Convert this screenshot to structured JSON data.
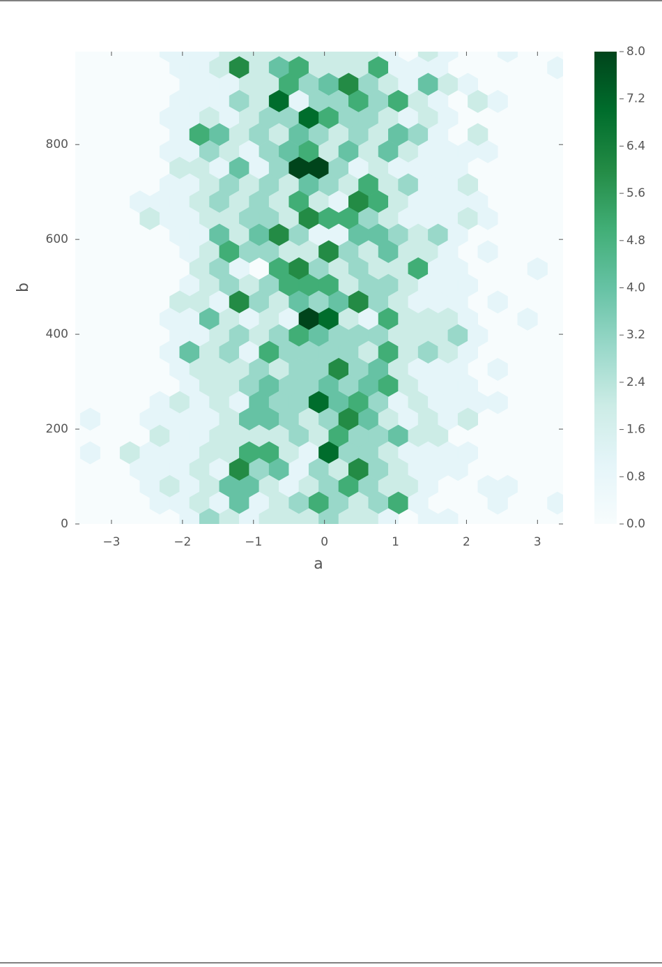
{
  "chart_data": {
    "type": "hexbin",
    "x_label": "a",
    "y_label": "b",
    "xlim": [
      -3.51,
      3.36
    ],
    "ylim": [
      0,
      996
    ],
    "xticks": [
      {
        "value": -3,
        "label": "−3"
      },
      {
        "value": -2,
        "label": "−2"
      },
      {
        "value": -1,
        "label": "−1"
      },
      0,
      1,
      2,
      3
    ],
    "yticks": [
      0,
      200,
      400,
      600,
      800
    ],
    "colormap": [
      "#f7fcfd",
      "#e5f5f9",
      "#ccece6",
      "#99d8c9",
      "#66c2a4",
      "#41ae76",
      "#238b45",
      "#006d2c",
      "#00441b"
    ],
    "clim": [
      0,
      8
    ],
    "cticks": [
      {
        "value": 0,
        "label": "0.0"
      },
      0.8,
      1.6,
      2.4,
      3.2,
      {
        "value": 4,
        "label": "4.0"
      },
      4.8,
      5.6,
      6.4,
      7.2,
      {
        "value": 8,
        "label": "8.0"
      }
    ],
    "rows": [
      {
        "y": 997,
        "x": [
          -2.18,
          -1.9,
          -1.62,
          -1.34,
          -1.06,
          -0.78,
          -0.5,
          -0.22,
          0.06,
          0.34,
          0.62,
          0.9,
          1.46,
          1.74,
          2.58
        ],
        "values": [
          1,
          1,
          1,
          2,
          2,
          2,
          2,
          2,
          2,
          2,
          2,
          1,
          2,
          1,
          1
        ]
      },
      {
        "y": 962,
        "x": [
          -2.04,
          -1.76,
          -1.48,
          -1.2,
          -0.92,
          -0.64,
          -0.36,
          -0.08,
          0.2,
          0.48,
          0.76,
          1.04,
          1.32,
          1.6,
          3.28
        ],
        "values": [
          1,
          1,
          2,
          6,
          2,
          4,
          5,
          2,
          2,
          2,
          5,
          1,
          1,
          1,
          1
        ]
      },
      {
        "y": 927,
        "x": [
          -1.9,
          -1.62,
          -1.34,
          -1.06,
          -0.78,
          -0.5,
          -0.22,
          0.06,
          0.34,
          0.62,
          0.9,
          1.18,
          1.46,
          1.74,
          2.02
        ],
        "values": [
          1,
          1,
          1,
          2,
          2,
          5,
          3,
          4,
          6,
          3,
          2,
          1,
          4,
          2,
          1
        ]
      },
      {
        "y": 891,
        "x": [
          -2.04,
          -1.76,
          -1.48,
          -1.2,
          -0.92,
          -0.64,
          -0.36,
          -0.08,
          0.2,
          0.48,
          0.76,
          1.04,
          1.32,
          1.6,
          2.16,
          2.44
        ],
        "values": [
          1,
          1,
          1,
          3,
          2,
          7,
          1,
          3,
          3,
          5,
          3,
          5,
          2,
          1,
          2,
          1
        ]
      },
      {
        "y": 856,
        "x": [
          -2.18,
          -1.9,
          -1.62,
          -1.34,
          -1.06,
          -0.78,
          -0.5,
          -0.22,
          0.06,
          0.34,
          0.62,
          0.9,
          1.18,
          1.46,
          1.74
        ],
        "values": [
          1,
          1,
          2,
          1,
          2,
          3,
          3,
          7,
          5,
          3,
          3,
          2,
          1,
          2,
          1
        ]
      },
      {
        "y": 821,
        "x": [
          -2.04,
          -1.76,
          -1.48,
          -1.2,
          -0.92,
          -0.64,
          -0.36,
          -0.08,
          0.2,
          0.48,
          0.76,
          1.04,
          1.32,
          1.6,
          2.16
        ],
        "values": [
          1,
          5,
          4,
          2,
          3,
          2,
          4,
          3,
          2,
          3,
          2,
          4,
          3,
          1,
          2
        ]
      },
      {
        "y": 785,
        "x": [
          -2.18,
          -1.9,
          -1.62,
          -1.34,
          -1.06,
          -0.78,
          -0.5,
          -0.22,
          0.06,
          0.34,
          0.62,
          0.9,
          1.18,
          1.46,
          1.74,
          2.02,
          2.3
        ],
        "values": [
          1,
          1,
          3,
          2,
          1,
          3,
          4,
          5,
          2,
          4,
          2,
          4,
          2,
          1,
          1,
          1,
          1
        ]
      },
      {
        "y": 750,
        "x": [
          -2.04,
          -1.76,
          -1.48,
          -1.2,
          -0.92,
          -0.64,
          -0.36,
          -0.08,
          0.2,
          0.48,
          0.76,
          1.04,
          1.32,
          1.6,
          1.88
        ],
        "values": [
          2,
          2,
          1,
          4,
          1,
          3,
          8,
          8,
          3,
          1,
          2,
          1,
          1,
          1,
          1
        ]
      },
      {
        "y": 715,
        "x": [
          -2.18,
          -1.9,
          -1.62,
          -1.34,
          -1.06,
          -0.78,
          -0.5,
          -0.22,
          0.06,
          0.34,
          0.62,
          0.9,
          1.18,
          1.46,
          1.74,
          2.02
        ],
        "values": [
          1,
          1,
          2,
          3,
          2,
          3,
          2,
          4,
          3,
          2,
          5,
          2,
          3,
          1,
          1,
          2
        ]
      },
      {
        "y": 679,
        "x": [
          -2.6,
          -2.32,
          -2.04,
          -1.76,
          -1.48,
          -1.2,
          -0.92,
          -0.64,
          -0.36,
          -0.08,
          0.2,
          0.48,
          0.76,
          1.04,
          1.32,
          1.6,
          1.88,
          2.16
        ],
        "values": [
          1,
          1,
          1,
          2,
          3,
          2,
          3,
          2,
          5,
          2,
          1,
          6,
          5,
          2,
          1,
          1,
          1,
          1
        ]
      },
      {
        "y": 644,
        "x": [
          -2.46,
          -2.18,
          -1.9,
          -1.62,
          -1.34,
          -1.06,
          -0.78,
          -0.5,
          -0.22,
          0.06,
          0.34,
          0.62,
          0.9,
          1.18,
          1.46,
          1.74,
          2.02,
          2.3
        ],
        "values": [
          2,
          1,
          1,
          2,
          2,
          3,
          3,
          2,
          6,
          5,
          5,
          3,
          2,
          1,
          1,
          1,
          2,
          1
        ]
      },
      {
        "y": 609,
        "x": [
          -2.04,
          -1.76,
          -1.48,
          -1.2,
          -0.92,
          -0.64,
          -0.36,
          -0.08,
          0.2,
          0.48,
          0.76,
          1.04,
          1.32,
          1.6,
          1.88
        ],
        "values": [
          1,
          1,
          4,
          2,
          4,
          6,
          3,
          1,
          1,
          4,
          4,
          3,
          2,
          3,
          1
        ]
      },
      {
        "y": 574,
        "x": [
          -1.9,
          -1.62,
          -1.34,
          -1.06,
          -0.78,
          -0.5,
          -0.22,
          0.06,
          0.34,
          0.62,
          0.9,
          1.18,
          1.46,
          1.74,
          2.3
        ],
        "values": [
          1,
          2,
          5,
          3,
          3,
          2,
          2,
          6,
          3,
          2,
          4,
          2,
          2,
          1,
          1
        ]
      },
      {
        "y": 538,
        "x": [
          -1.76,
          -1.48,
          -1.2,
          -0.64,
          -0.36,
          -0.08,
          0.2,
          0.48,
          0.76,
          1.04,
          1.32,
          1.6,
          1.88,
          3.0
        ],
        "values": [
          2,
          3,
          1,
          5,
          6,
          3,
          2,
          3,
          2,
          2,
          5,
          1,
          1,
          1
        ]
      },
      {
        "y": 503,
        "x": [
          -1.9,
          -1.62,
          -1.34,
          -1.06,
          -0.78,
          -0.5,
          -0.22,
          0.06,
          0.34,
          0.62,
          0.9,
          1.18,
          1.46,
          1.74,
          2.02
        ],
        "values": [
          1,
          2,
          3,
          2,
          3,
          5,
          5,
          5,
          2,
          3,
          3,
          2,
          1,
          1,
          1
        ]
      },
      {
        "y": 468,
        "x": [
          -2.04,
          -1.76,
          -1.48,
          -1.2,
          -0.92,
          -0.64,
          -0.36,
          -0.08,
          0.2,
          0.48,
          0.76,
          1.04,
          1.32,
          1.6,
          1.88,
          2.44
        ],
        "values": [
          2,
          2,
          1,
          6,
          3,
          2,
          4,
          3,
          4,
          6,
          3,
          2,
          1,
          1,
          1,
          1
        ]
      },
      {
        "y": 432,
        "x": [
          -2.18,
          -1.9,
          -1.62,
          -1.34,
          -1.06,
          -0.78,
          -0.5,
          -0.22,
          0.06,
          0.34,
          0.62,
          0.9,
          1.18,
          1.46,
          1.74,
          2.02,
          2.86
        ],
        "values": [
          1,
          1,
          4,
          2,
          1,
          2,
          1,
          8,
          7,
          2,
          1,
          5,
          2,
          2,
          2,
          1,
          1
        ]
      },
      {
        "y": 397,
        "x": [
          -2.04,
          -1.76,
          -1.48,
          -1.2,
          -0.92,
          -0.64,
          -0.36,
          -0.08,
          0.2,
          0.48,
          0.76,
          1.04,
          1.32,
          1.6,
          1.88,
          2.16
        ],
        "values": [
          1,
          1,
          2,
          3,
          2,
          3,
          5,
          4,
          3,
          3,
          3,
          2,
          2,
          2,
          3,
          1
        ]
      },
      {
        "y": 362,
        "x": [
          -2.18,
          -1.9,
          -1.62,
          -1.34,
          -1.06,
          -0.78,
          -0.5,
          -0.22,
          0.06,
          0.34,
          0.62,
          0.9,
          1.18,
          1.46,
          1.74,
          2.02
        ],
        "values": [
          1,
          4,
          2,
          3,
          1,
          5,
          3,
          3,
          3,
          3,
          2,
          5,
          2,
          3,
          2,
          1
        ]
      },
      {
        "y": 326,
        "x": [
          -2.04,
          -1.76,
          -1.48,
          -1.2,
          -0.92,
          -0.64,
          -0.36,
          -0.08,
          0.2,
          0.48,
          0.76,
          1.04,
          1.32,
          1.6,
          1.88,
          2.44
        ],
        "values": [
          1,
          2,
          2,
          2,
          3,
          2,
          3,
          3,
          6,
          3,
          4,
          2,
          1,
          1,
          1,
          1
        ]
      },
      {
        "y": 291,
        "x": [
          -1.9,
          -1.62,
          -1.34,
          -1.06,
          -0.78,
          -0.5,
          -0.22,
          0.06,
          0.34,
          0.62,
          0.9,
          1.18,
          1.46,
          1.74,
          2.02
        ],
        "values": [
          1,
          2,
          2,
          3,
          4,
          3,
          3,
          4,
          3,
          4,
          5,
          2,
          1,
          1,
          1
        ]
      },
      {
        "y": 256,
        "x": [
          -2.32,
          -2.04,
          -1.76,
          -1.48,
          -1.2,
          -0.92,
          -0.64,
          -0.36,
          -0.08,
          0.2,
          0.48,
          0.76,
          1.04,
          1.32,
          1.6,
          1.88,
          2.16,
          2.44
        ],
        "values": [
          1,
          2,
          1,
          2,
          1,
          4,
          3,
          3,
          7,
          4,
          5,
          3,
          1,
          2,
          1,
          1,
          1,
          1
        ]
      },
      {
        "y": 221,
        "x": [
          -3.3,
          -2.46,
          -2.18,
          -1.9,
          -1.62,
          -1.34,
          -1.06,
          -0.78,
          -0.5,
          -0.22,
          0.06,
          0.34,
          0.62,
          0.9,
          1.18,
          1.46,
          1.74,
          2.02
        ],
        "values": [
          1,
          1,
          1,
          1,
          1,
          2,
          4,
          4,
          3,
          2,
          3,
          6,
          4,
          2,
          1,
          2,
          1,
          2
        ]
      },
      {
        "y": 185,
        "x": [
          -2.32,
          -2.04,
          -1.76,
          -1.48,
          -1.2,
          -0.92,
          -0.64,
          -0.36,
          -0.08,
          0.2,
          0.48,
          0.76,
          1.04,
          1.32,
          1.6
        ],
        "values": [
          2,
          1,
          1,
          2,
          2,
          2,
          2,
          3,
          2,
          5,
          3,
          3,
          4,
          2,
          2
        ]
      },
      {
        "y": 150,
        "x": [
          -3.3,
          -2.74,
          -2.46,
          -2.18,
          -1.9,
          -1.62,
          -1.34,
          -1.06,
          -0.78,
          -0.5,
          -0.22,
          0.06,
          0.34,
          0.62,
          0.9,
          1.18,
          1.46,
          1.74,
          2.02
        ],
        "values": [
          1,
          2,
          1,
          1,
          1,
          2,
          2,
          5,
          5,
          2,
          1,
          7,
          3,
          3,
          2,
          1,
          1,
          1,
          1
        ]
      },
      {
        "y": 115,
        "x": [
          -2.6,
          -2.32,
          -2.04,
          -1.76,
          -1.48,
          -1.2,
          -0.92,
          -0.64,
          -0.36,
          -0.08,
          0.2,
          0.48,
          0.76,
          1.04,
          1.32,
          1.6,
          1.88
        ],
        "values": [
          1,
          1,
          1,
          2,
          1,
          6,
          3,
          4,
          1,
          3,
          2,
          6,
          3,
          2,
          1,
          1,
          1
        ]
      },
      {
        "y": 79,
        "x": [
          -2.46,
          -2.18,
          -1.9,
          -1.62,
          -1.34,
          -1.06,
          -0.78,
          -0.5,
          -0.22,
          0.06,
          0.34,
          0.62,
          0.9,
          1.18,
          1.46,
          2.3,
          2.58
        ],
        "values": [
          1,
          2,
          1,
          2,
          4,
          4,
          2,
          1,
          2,
          3,
          5,
          3,
          2,
          2,
          1,
          1,
          1
        ]
      },
      {
        "y": 44,
        "x": [
          -2.32,
          -2.04,
          -1.76,
          -1.48,
          -1.2,
          -0.92,
          -0.64,
          -0.36,
          -0.08,
          0.2,
          0.48,
          0.76,
          1.04,
          1.32,
          2.44,
          3.28
        ],
        "values": [
          1,
          1,
          2,
          1,
          4,
          1,
          2,
          3,
          5,
          3,
          2,
          3,
          5,
          1,
          1,
          1
        ]
      },
      {
        "y": 9,
        "x": [
          -1.9,
          -1.62,
          -1.34,
          -1.06,
          -0.78,
          -0.5,
          -0.22,
          0.06,
          0.34,
          0.62,
          0.9,
          1.46,
          1.74
        ],
        "values": [
          1,
          3,
          2,
          1,
          2,
          2,
          2,
          3,
          2,
          2,
          1,
          1,
          1
        ]
      }
    ]
  }
}
